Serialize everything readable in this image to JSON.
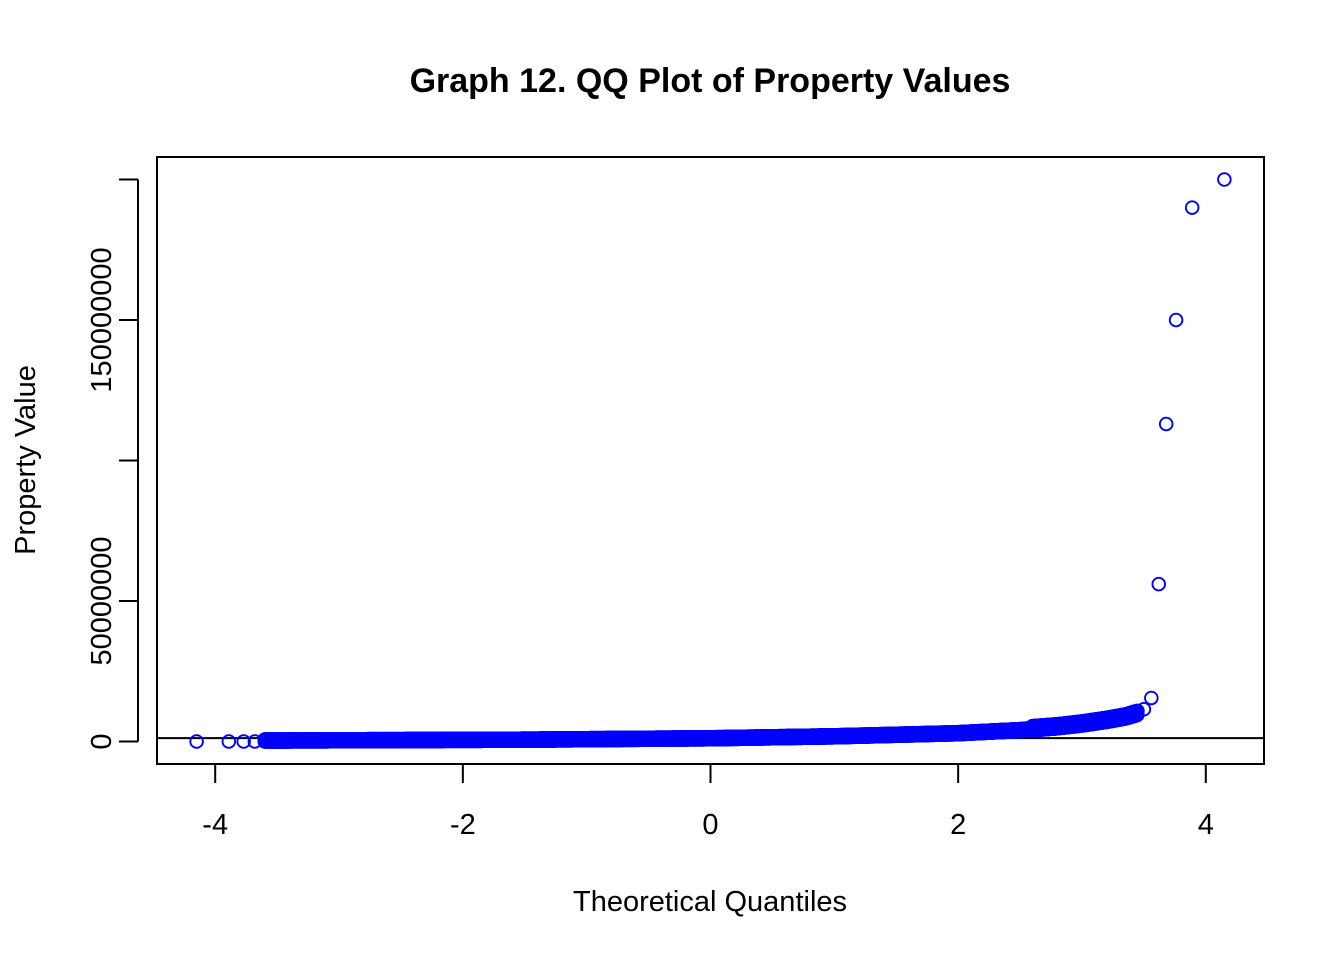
{
  "chart_data": {
    "type": "scatter",
    "title": "Graph 12. QQ Plot of Property Values",
    "xlabel": "Theoretical Quantiles",
    "ylabel": "Property Value",
    "xlim": [
      -4.47,
      4.47
    ],
    "ylim": [
      -8000000,
      208000000
    ],
    "x_ticks": [
      -4,
      -2,
      0,
      2,
      4
    ],
    "x_tick_labels": [
      "-4",
      "-2",
      "0",
      "2",
      "4"
    ],
    "y_ticks": [
      0,
      50000000,
      100000000,
      150000000,
      200000000
    ],
    "y_tick_labels": [
      "0",
      "50000000",
      "",
      "150000000",
      ""
    ],
    "grid": false,
    "legend": "none",
    "point_color": "#0000ff",
    "reference_line": {
      "color": "#000000",
      "intercept": 1200000,
      "slope": 0
    },
    "tail_points": [
      {
        "x": -4.15,
        "y": 0
      },
      {
        "x": -3.89,
        "y": 0
      },
      {
        "x": -3.77,
        "y": 0
      },
      {
        "x": -3.68,
        "y": 0
      },
      {
        "x": 3.5,
        "y": 11500000
      },
      {
        "x": 3.56,
        "y": 15500000
      },
      {
        "x": 3.62,
        "y": 56000000
      },
      {
        "x": 3.68,
        "y": 113000000
      },
      {
        "x": 3.76,
        "y": 150000000
      },
      {
        "x": 3.89,
        "y": 190000000
      },
      {
        "x": 4.15,
        "y": 200000000
      }
    ],
    "bulk_curve": [
      [
        -3.6,
        0
      ],
      [
        -1.5,
        300000
      ],
      [
        0,
        800000
      ],
      [
        1,
        1500000
      ],
      [
        2,
        2600000
      ],
      [
        2.5,
        3700000
      ],
      [
        2.8,
        4700000
      ],
      [
        3.0,
        5700000
      ],
      [
        3.2,
        7000000
      ],
      [
        3.35,
        8200000
      ],
      [
        3.45,
        9500000
      ]
    ]
  }
}
